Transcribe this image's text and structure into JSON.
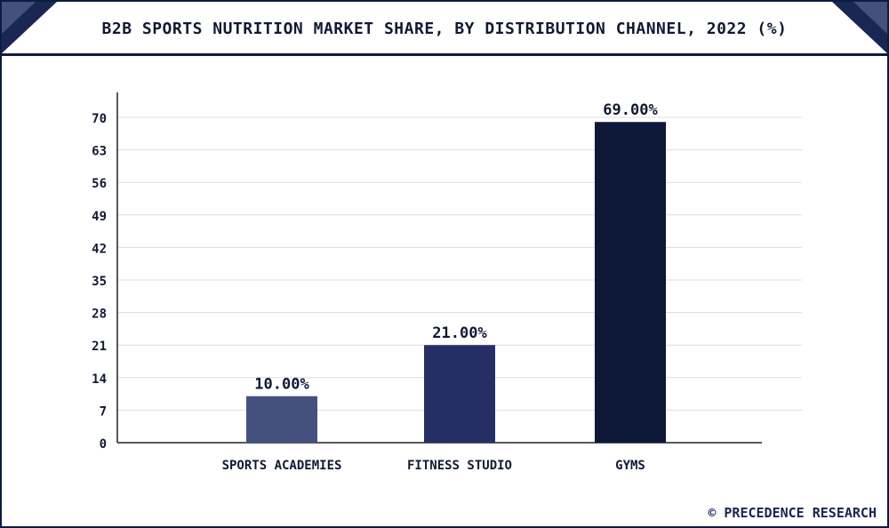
{
  "chart_data": {
    "type": "bar",
    "title": "B2B SPORTS NUTRITION MARKET SHARE, BY DISTRIBUTION CHANNEL, 2022 (%)",
    "categories": [
      "SPORTS ACADEMIES",
      "FITNESS STUDIO",
      "GYMS"
    ],
    "values": [
      10,
      21,
      69
    ],
    "data_labels": [
      "10.00%",
      "21.00%",
      "69.00%"
    ],
    "bar_colors": [
      "#44507e",
      "#252f65",
      "#0d1838"
    ],
    "yticks": [
      0,
      7,
      14,
      21,
      28,
      35,
      42,
      49,
      56,
      63,
      70
    ],
    "ylim": [
      0,
      70
    ],
    "xlabel": "",
    "ylabel": "",
    "grid": true,
    "legend": "none"
  },
  "footer": {
    "brand": "© PRECEDENCE RESEARCH"
  },
  "colors": {
    "accent": "#1a2752",
    "accent_light": "#44507e",
    "text": "#111a33"
  }
}
